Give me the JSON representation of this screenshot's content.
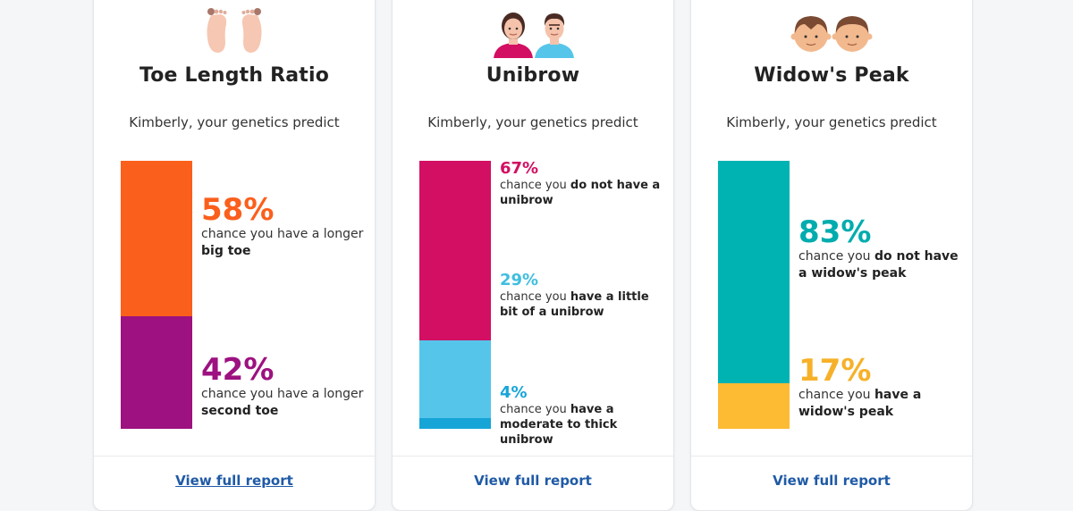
{
  "cards": [
    {
      "title": "Toe Length Ratio",
      "subtitle": "Kimberly, your genetics predict",
      "icon": "feet-icon",
      "link": "View full report",
      "bar": [
        {
          "value": 58,
          "color": "#fb5f1c"
        },
        {
          "value": 42,
          "color": "#9d1180"
        }
      ],
      "stats": [
        {
          "pct": "58%",
          "pre": "chance you have a longer ",
          "bold": "big toe",
          "color": "#fb5f1c"
        },
        {
          "pct": "42%",
          "pre": "chance you have a longer ",
          "bold": "second toe",
          "color": "#9d1180"
        }
      ]
    },
    {
      "title": "Unibrow",
      "subtitle": "Kimberly, your genetics predict",
      "icon": "people-icon",
      "link": "View full report",
      "bar": [
        {
          "value": 67,
          "color": "#d20f63"
        },
        {
          "value": 29,
          "color": "#56c5ea"
        },
        {
          "value": 4,
          "color": "#17a5d8"
        }
      ],
      "stats": [
        {
          "pct": "67%",
          "pre": "chance you ",
          "bold": "do not have a unibrow",
          "color": "#d20f63"
        },
        {
          "pct": "29%",
          "pre": "chance you ",
          "bold": "have a little bit of a unibrow",
          "color": "#3fbedf"
        },
        {
          "pct": "4%",
          "pre": "chance you ",
          "bold": "have a moderate to thick unibrow",
          "color": "#17a5d8"
        }
      ]
    },
    {
      "title": "Widow's Peak",
      "subtitle": "Kimberly, your genetics predict",
      "icon": "faces-icon",
      "link": "View full report",
      "bar": [
        {
          "value": 83,
          "color": "#00b3b3"
        },
        {
          "value": 17,
          "color": "#fdba33"
        }
      ],
      "stats": [
        {
          "pct": "83%",
          "pre": "chance you ",
          "bold": "do not have a widow's peak",
          "color": "#00acae"
        },
        {
          "pct": "17%",
          "pre": "chance you ",
          "bold": "have a widow's peak",
          "color": "#f6b12a"
        }
      ]
    }
  ]
}
